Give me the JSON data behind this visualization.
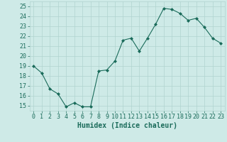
{
  "x": [
    0,
    1,
    2,
    3,
    4,
    5,
    6,
    7,
    8,
    9,
    10,
    11,
    12,
    13,
    14,
    15,
    16,
    17,
    18,
    19,
    20,
    21,
    22,
    23
  ],
  "y": [
    19,
    18.3,
    16.7,
    16.2,
    14.9,
    15.3,
    14.9,
    14.9,
    18.5,
    18.6,
    19.5,
    21.6,
    21.8,
    20.5,
    21.8,
    23.2,
    24.8,
    24.7,
    24.3,
    23.6,
    23.8,
    22.9,
    21.8,
    21.3
  ],
  "xlabel": "Humidex (Indice chaleur)",
  "ylim": [
    14.5,
    25.5
  ],
  "xlim": [
    -0.5,
    23.5
  ],
  "yticks": [
    15,
    16,
    17,
    18,
    19,
    20,
    21,
    22,
    23,
    24,
    25
  ],
  "xtick_labels": [
    "0",
    "1",
    "2",
    "3",
    "4",
    "5",
    "6",
    "7",
    "8",
    "9",
    "10",
    "11",
    "12",
    "13",
    "14",
    "15",
    "16",
    "17",
    "18",
    "19",
    "20",
    "21",
    "22",
    "23"
  ],
  "line_color": "#1a6b5a",
  "marker": "D",
  "marker_size": 2,
  "bg_color": "#ceeae7",
  "grid_color": "#b0d4d0",
  "label_color": "#1a6b5a",
  "tick_fontsize": 6,
  "xlabel_fontsize": 7
}
